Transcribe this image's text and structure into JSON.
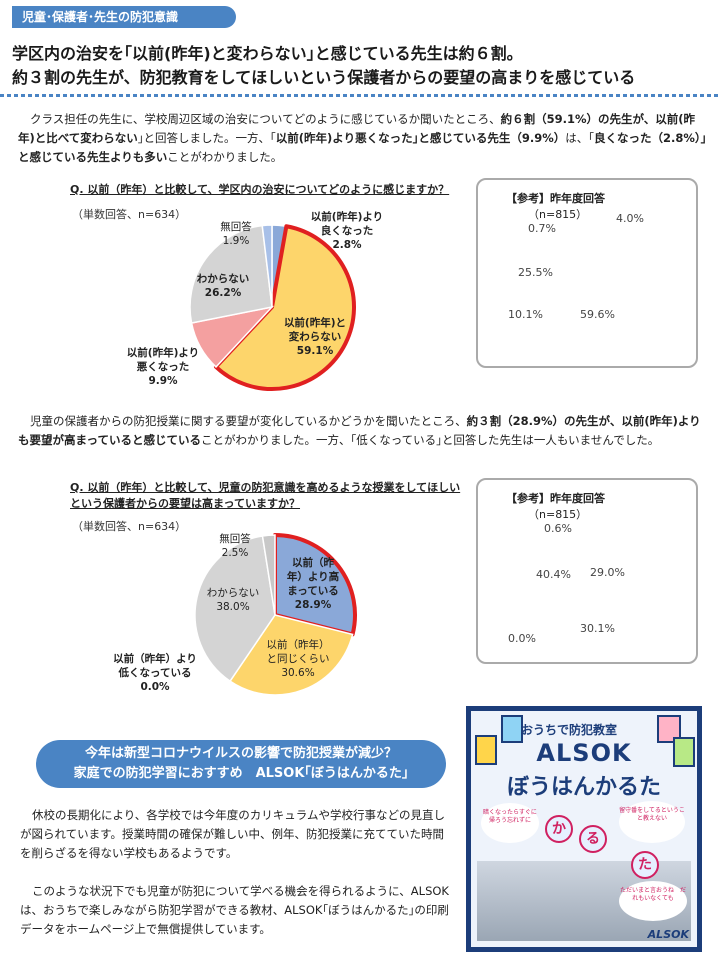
{
  "tag": "児童･保護者･先生の防犯意識",
  "headline": {
    "line1": "学区内の治安を｢以前(昨年)と変わらない｣と感じている先生は約６割。",
    "line2": "約３割の先生が、防犯教育をしてほしいという保護者からの要望の高まりを感じている"
  },
  "para1": {
    "t1": "クラス担任の先生に、学校周辺区域の治安についてどのように感じているか聞いたところ、",
    "b1": "約６割（59.1%）の先生が、以前(昨年)と比べて変わらない",
    "t2": "｣と回答しました。一方、｢",
    "b2": "以前(昨年)より悪くなった｣と感じている先生（9.9%）",
    "t3": "は、｢",
    "b3": "良くなった（2.8%）｣と感じている先生よりも多い",
    "t4": "ことがわかりました。"
  },
  "para2": {
    "t1": "児童の保護者からの防犯授業に関する要望が変化しているかどうかを聞いたところ、",
    "b1": "約３割（28.9%）の先生が、以前(昨年)よりも要望が高まっていると感じている",
    "t2": "ことがわかりました。一方、｢低くなっている｣と回答した先生は一人もいませんでした。"
  },
  "chart_data": [
    {
      "type": "pie",
      "title": "Q. 以前（昨年）と比較して、学区内の治安についてどのように感じますか？",
      "note": "（単数回答、n=634）",
      "labels": [
        "以前(昨年)より良くなった",
        "以前(昨年)と変わらない",
        "以前(昨年)より悪くなった",
        "わからない",
        "無回答"
      ],
      "values": [
        2.8,
        59.1,
        9.9,
        26.2,
        1.9
      ],
      "colors": [
        "#8aa8d8",
        "#fdd56b",
        "#f4a0a0",
        "#d4d4d4",
        "#a8c0e8"
      ],
      "highlight": 1,
      "label_text": [
        {
          "l1": "以前(昨年)より",
          "l2": "良くなった",
          "v": "2.8%"
        },
        {
          "l1": "以前(昨年)と",
          "l2": "変わらない",
          "v": "59.1%"
        },
        {
          "l1": "以前(昨年)より",
          "l2": "悪くなった",
          "v": "9.9%"
        },
        {
          "l1": "わからない",
          "l2": "",
          "v": "26.2%"
        },
        {
          "l1": "無回答",
          "l2": "",
          "v": "1.9%"
        }
      ]
    },
    {
      "type": "pie",
      "title": "【参考】昨年度回答",
      "note": "（n=815）",
      "values": [
        4.0,
        59.6,
        10.1,
        25.5,
        0.7
      ],
      "label_text": [
        "4.0%",
        "59.6%",
        "10.1%",
        "25.5%",
        "0.7%"
      ]
    },
    {
      "type": "pie",
      "title": "Q. 以前（昨年）と比較して、児童の防犯意識を高めるような授業をしてほしいという保護者からの要望は高まっていますか？",
      "note": "（単数回答、n=634）",
      "labels": [
        "以前(昨年)より高まっている",
        "以前（昨年）と同じくらい",
        "以前（昨年）より低くなっている",
        "わからない",
        "無回答"
      ],
      "values": [
        28.9,
        30.6,
        0.0,
        38.0,
        2.5
      ],
      "colors": [
        "#8aa8d8",
        "#fdd56b",
        "#f4a0a0",
        "#d4d4d4",
        "#c8c8c8"
      ],
      "highlight": 0,
      "label_text": [
        {
          "l1": "以前（昨",
          "l2": "年）より高",
          "l3": "まっている",
          "v": "28.9%"
        },
        {
          "l1": "以前（昨年）",
          "l2": "と同じくらい",
          "v": "30.6%"
        },
        {
          "l1": "以前（昨年）より",
          "l2": "低くなっている",
          "v": "0.0%"
        },
        {
          "l1": "わからない",
          "l2": "",
          "v": "38.0%"
        },
        {
          "l1": "無回答",
          "l2": "",
          "v": "2.5%"
        }
      ]
    },
    {
      "type": "pie",
      "title": "【参考】昨年度回答",
      "note": "（n=815）",
      "values": [
        29.0,
        30.1,
        0.0,
        40.4,
        0.6
      ],
      "label_text": [
        "29.0%",
        "30.1%",
        "0.0%",
        "40.4%",
        "0.6%"
      ]
    }
  ],
  "banner": {
    "line1": "今年は新型コロナウイルスの影響で防犯授業が減少？",
    "line2": "家庭での防犯学習におすすめ　ALSOK｢ぼうはんかるた｣"
  },
  "para3": "休校の長期化により、各学校では今年度のカリキュラムや学校行事などの見直しが図られています。授業時間の確保が難しい中、例年、防犯授業に充てていた時間を削らざるを得ない学校もあるようです。",
  "para4": "このような状況下でも児童が防犯について学べる機会を得られるように、ALSOKは、おうちで楽しみながら防犯学習ができる教材、ALSOK｢ぼうはんかるた｣の印刷データをホームページ上で無償提供しています。",
  "poster": {
    "subtitle": "おうちで防犯教室",
    "title1": "ALSOK",
    "title2": "ぼうはんかるた",
    "bubble1": "暗くなったらすぐに帰ろう忘れずに",
    "bubble2": "留守番をしてるということ教えない",
    "bubble3": "ただいまと言おうね　だれもいなくても",
    "kana1": "か",
    "kana2": "る",
    "kana3": "た",
    "logo": "ALSOK"
  }
}
